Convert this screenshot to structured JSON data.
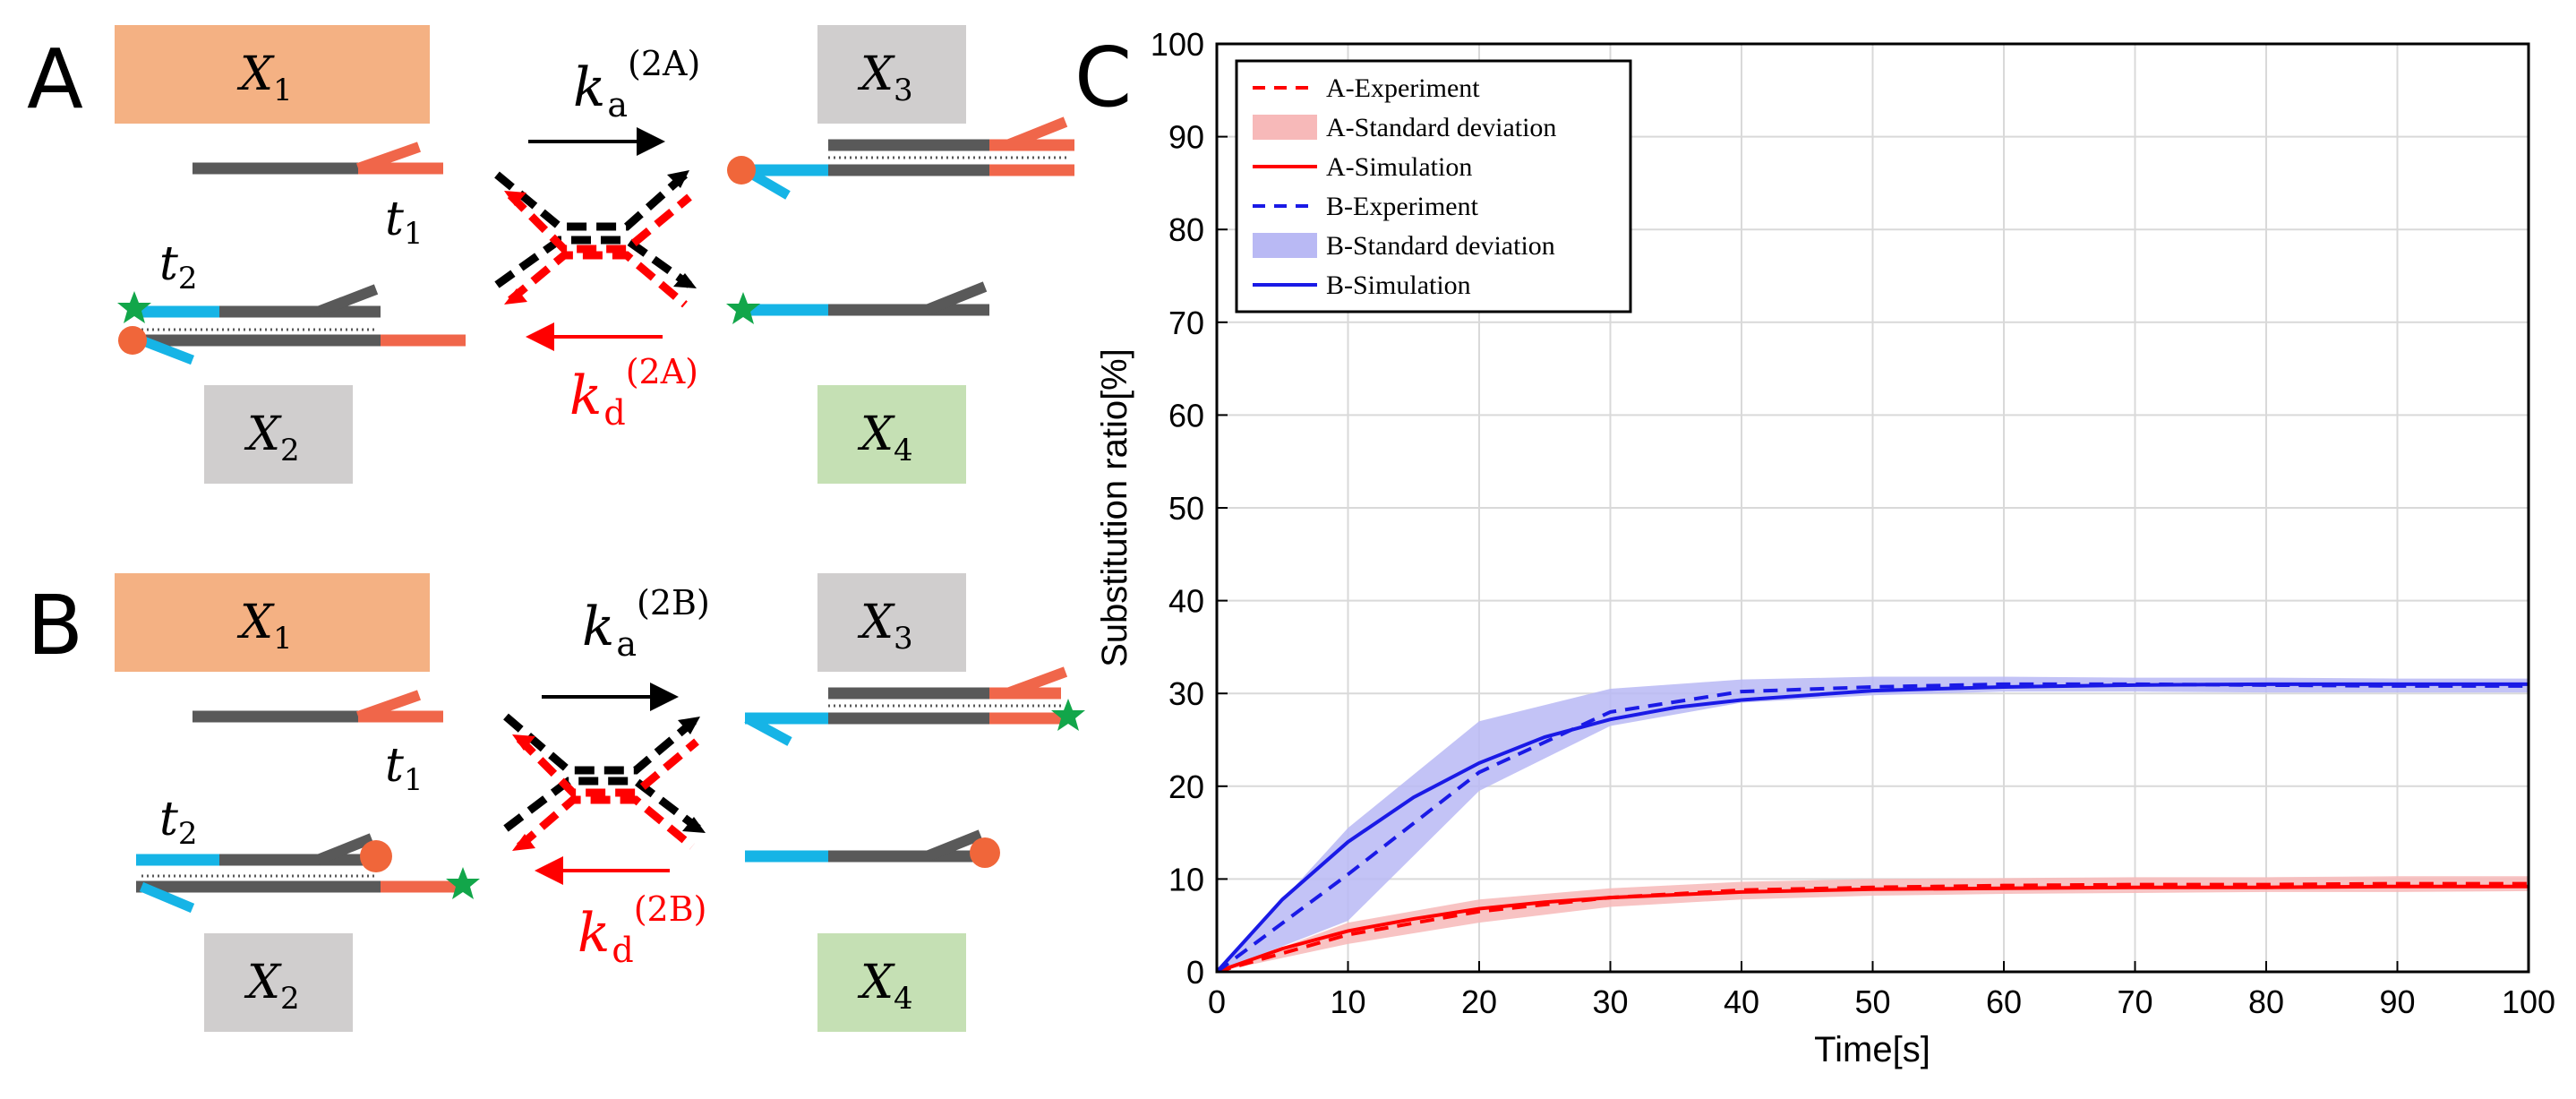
{
  "panels": {
    "A": {
      "letter": "A",
      "species": [
        {
          "name": "X",
          "sub": "1"
        },
        {
          "name": "X",
          "sub": "2"
        },
        {
          "name": "X",
          "sub": "3"
        },
        {
          "name": "X",
          "sub": "4"
        }
      ],
      "toehold_labels": [
        {
          "name": "t",
          "sub": "1"
        },
        {
          "name": "t",
          "sub": "2"
        }
      ],
      "rate_forward": {
        "k": "k",
        "sub": "a",
        "sup": "(2A)"
      },
      "rate_backward": {
        "k": "k",
        "sub": "d",
        "sup": "(2A)"
      }
    },
    "B": {
      "letter": "B",
      "species": [
        {
          "name": "X",
          "sub": "1"
        },
        {
          "name": "X",
          "sub": "2"
        },
        {
          "name": "X",
          "sub": "3"
        },
        {
          "name": "X",
          "sub": "4"
        }
      ],
      "toehold_labels": [
        {
          "name": "t",
          "sub": "1"
        },
        {
          "name": "t",
          "sub": "2"
        }
      ],
      "rate_forward": {
        "k": "k",
        "sub": "a",
        "sup": "(2B)"
      },
      "rate_backward": {
        "k": "k",
        "sub": "d",
        "sup": "(2B)"
      }
    },
    "C": {
      "letter": "C"
    }
  },
  "colors": {
    "x1_box": "#F4B183",
    "grey_box": "#D0CECE",
    "green_box": "#C5E0B4",
    "strand_dark": "#595959",
    "strand_orange": "#F0664A",
    "strand_blue": "#16B4E6",
    "fluor_green": "#12A64A",
    "quench_orange": "#F0663A",
    "red": "#FF0000",
    "blue": "#1A1AE6",
    "red_band": "#F7B9B9",
    "blue_band": "#B9B9F4"
  },
  "chart_data": {
    "type": "line",
    "xlabel": "Time[s]",
    "ylabel": "Substitution ratio[%]",
    "xlim": [
      0,
      100
    ],
    "ylim": [
      0,
      100
    ],
    "xticks": [
      0,
      10,
      20,
      30,
      40,
      50,
      60,
      70,
      80,
      90,
      100
    ],
    "yticks": [
      0,
      10,
      20,
      30,
      40,
      50,
      60,
      70,
      80,
      90,
      100
    ],
    "grid": true,
    "legend_position": "top-left",
    "legend": [
      "A-Experiment",
      "A-Standard deviation",
      "A-Simulation",
      "B-Experiment",
      "B-Standard deviation",
      "B-Simulation"
    ],
    "series": [
      {
        "name": "A-Experiment",
        "style": "dashed",
        "color": "red",
        "x": [
          0,
          10,
          20,
          30,
          40,
          50,
          60,
          70,
          80,
          90,
          100
        ],
        "y": [
          0,
          4,
          6.5,
          8,
          8.8,
          9.1,
          9.3,
          9.4,
          9.4,
          9.5,
          9.5
        ]
      },
      {
        "name": "A-Standard deviation",
        "style": "band",
        "color": "red",
        "x": [
          0,
          10,
          20,
          30,
          40,
          50,
          60,
          70,
          80,
          90,
          100
        ],
        "lower": [
          0,
          3,
          5.3,
          7,
          7.8,
          8.2,
          8.4,
          8.5,
          8.6,
          8.6,
          8.7
        ],
        "upper": [
          0,
          5.3,
          7.8,
          9,
          9.7,
          10,
          10.1,
          10.2,
          10.2,
          10.3,
          10.3
        ]
      },
      {
        "name": "A-Simulation",
        "style": "solid",
        "color": "red",
        "x": [
          0,
          5,
          10,
          15,
          20,
          25,
          30,
          40,
          50,
          60,
          70,
          80,
          90,
          100
        ],
        "y": [
          0,
          2.5,
          4.4,
          5.7,
          6.8,
          7.5,
          8,
          8.6,
          8.9,
          9.0,
          9.1,
          9.1,
          9.2,
          9.2
        ]
      },
      {
        "name": "B-Experiment",
        "style": "dashed",
        "color": "blue",
        "x": [
          0,
          10,
          20,
          30,
          40,
          50,
          60,
          70,
          80,
          90,
          100
        ],
        "y": [
          0,
          10.5,
          21.5,
          28,
          30.2,
          30.7,
          31,
          31,
          30.9,
          30.8,
          30.8
        ]
      },
      {
        "name": "B-Standard deviation",
        "style": "band",
        "color": "blue",
        "x": [
          0,
          10,
          20,
          30,
          40,
          50,
          60,
          70,
          80,
          90,
          100
        ],
        "lower": [
          0,
          5.5,
          19.5,
          26.5,
          29,
          29.8,
          30.2,
          30.2,
          30.1,
          30.1,
          30.1
        ],
        "upper": [
          0,
          15.5,
          27,
          30.5,
          31.5,
          31.8,
          31.8,
          31.7,
          31.7,
          31.6,
          31.6
        ]
      },
      {
        "name": "B-Simulation",
        "style": "solid",
        "color": "blue",
        "x": [
          0,
          5,
          10,
          15,
          20,
          25,
          30,
          35,
          40,
          50,
          60,
          70,
          80,
          90,
          100
        ],
        "y": [
          0,
          7.8,
          14,
          18.8,
          22.5,
          25.3,
          27.2,
          28.5,
          29.3,
          30.3,
          30.7,
          30.9,
          31,
          31,
          31
        ]
      }
    ]
  }
}
